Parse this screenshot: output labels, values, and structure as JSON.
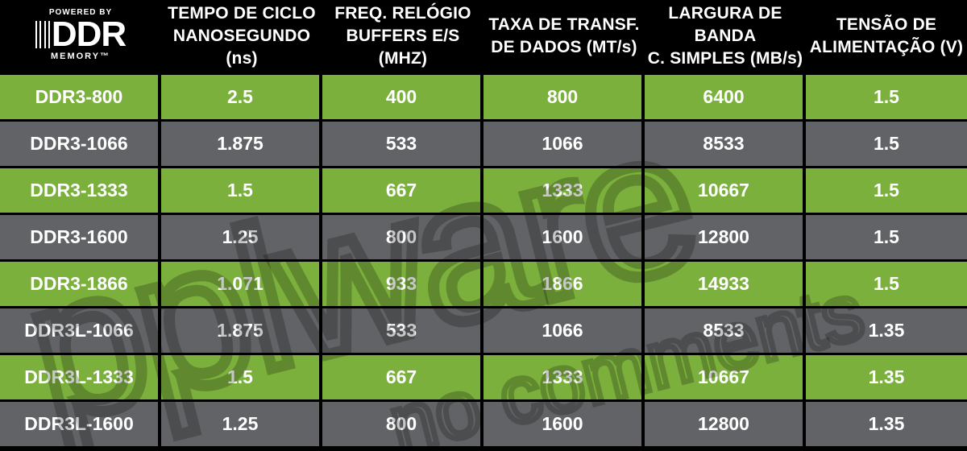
{
  "logo": {
    "top_text": "POWERED BY",
    "main_text": "DDR",
    "bottom_text": "MEMORY™"
  },
  "headers": [
    "TEMPO DE CICLO\nNANOSEGUNDO (ns)",
    "FREQ. RELÓGIO\nBUFFERS E/S (MHZ)",
    "TAXA DE TRANSF.\nDE DADOS (MT/s)",
    "LARGURA DE BANDA\nC. SIMPLES (MB/s)",
    "TENSÃO DE\nALIMENTAÇÃO (V)"
  ],
  "rows": [
    [
      "DDR3-800",
      "2.5",
      "400",
      "800",
      "6400",
      "1.5"
    ],
    [
      "DDR3-1066",
      "1.875",
      "533",
      "1066",
      "8533",
      "1.5"
    ],
    [
      "DDR3-1333",
      "1.5",
      "667",
      "1333",
      "10667",
      "1.5"
    ],
    [
      "DDR3-1600",
      "1.25",
      "800",
      "1600",
      "12800",
      "1.5"
    ],
    [
      "DDR3-1866",
      "1.071",
      "933",
      "1866",
      "14933",
      "1.5"
    ],
    [
      "DDR3L-1066",
      "1.875",
      "533",
      "1066",
      "8533",
      "1.35"
    ],
    [
      "DDR3L-1333",
      "1.5",
      "667",
      "1333",
      "10667",
      "1.35"
    ],
    [
      "DDR3L-1600",
      "1.25",
      "800",
      "1600",
      "12800",
      "1.35"
    ]
  ],
  "watermark": {
    "line1": "pplware",
    "line2": "no comments"
  },
  "colors": {
    "green_row": "#7bb03d",
    "gray_row": "#616366",
    "background": "#000000"
  }
}
